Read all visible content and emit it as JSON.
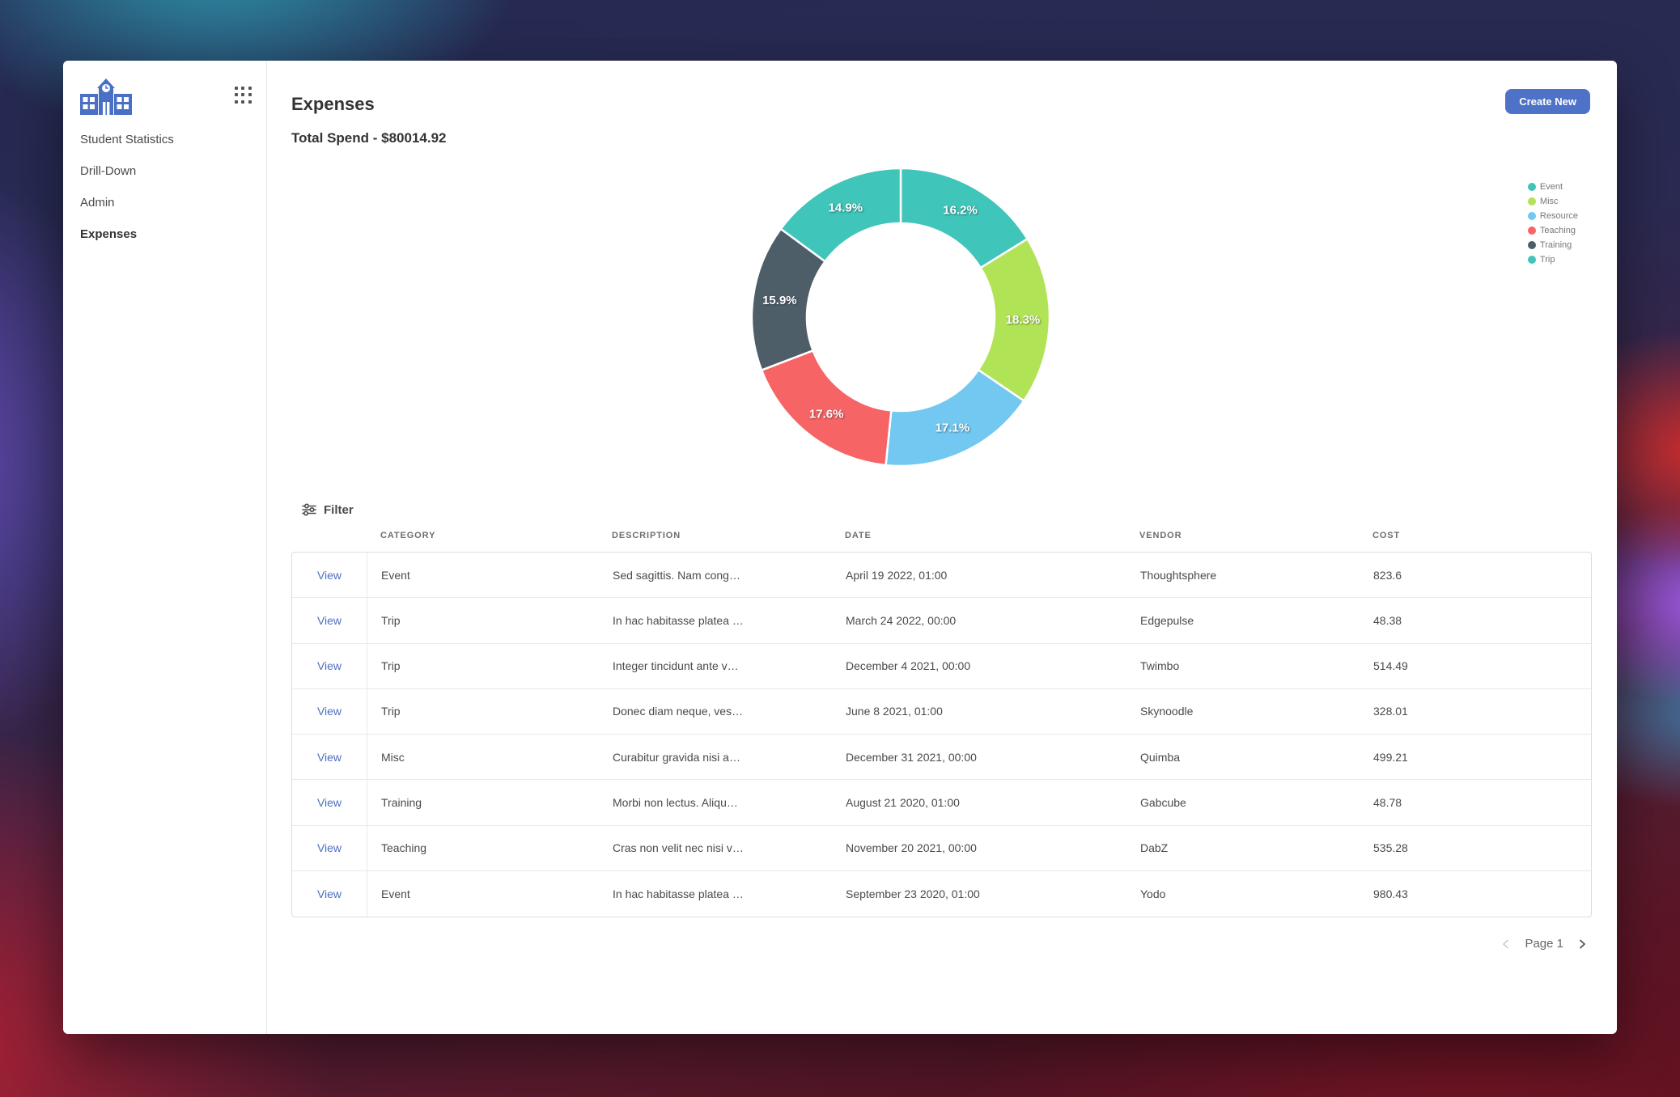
{
  "sidebar": {
    "items": [
      {
        "label": "Student Statistics",
        "active": false
      },
      {
        "label": "Drill-Down",
        "active": false
      },
      {
        "label": "Admin",
        "active": false
      },
      {
        "label": "Expenses",
        "active": true
      }
    ]
  },
  "header": {
    "title": "Expenses",
    "total_spend": "Total Spend - $80014.92",
    "create_button": "Create New"
  },
  "chart_data": {
    "type": "pie",
    "donut": true,
    "labels": [
      "Event",
      "Misc",
      "Resource",
      "Teaching",
      "Training",
      "Trip"
    ],
    "values": [
      16.2,
      18.3,
      17.1,
      17.6,
      15.9,
      14.9
    ],
    "data_labels": [
      "16.2%",
      "18.3%",
      "17.1%",
      "17.6%",
      "15.9%",
      "14.9%"
    ],
    "colors": [
      "#3fc5b9",
      "#b1e356",
      "#72c8f0",
      "#f66465",
      "#4d5e69",
      "#3fc5b9"
    ],
    "legend_position": "right",
    "start_angle_deg": -90,
    "direction": "clockwise",
    "total_value": 80014.92
  },
  "filter": {
    "label": "Filter"
  },
  "table": {
    "action_label": "View",
    "columns": [
      "CATEGORY",
      "DESCRIPTION",
      "DATE",
      "VENDOR",
      "COST"
    ],
    "rows": [
      {
        "category": "Event",
        "description": "Sed sagittis. Nam cong…",
        "date": "April 19 2022, 01:00",
        "vendor": "Thoughtsphere",
        "cost": "823.6"
      },
      {
        "category": "Trip",
        "description": "In hac habitasse platea …",
        "date": "March 24 2022, 00:00",
        "vendor": "Edgepulse",
        "cost": "48.38"
      },
      {
        "category": "Trip",
        "description": "Integer tincidunt ante v…",
        "date": "December 4 2021, 00:00",
        "vendor": "Twimbo",
        "cost": "514.49"
      },
      {
        "category": "Trip",
        "description": "Donec diam neque, ves…",
        "date": "June 8 2021, 01:00",
        "vendor": "Skynoodle",
        "cost": "328.01"
      },
      {
        "category": "Misc",
        "description": "Curabitur gravida nisi a…",
        "date": "December 31 2021, 00:00",
        "vendor": "Quimba",
        "cost": "499.21"
      },
      {
        "category": "Training",
        "description": "Morbi non lectus. Aliqu…",
        "date": "August 21 2020, 01:00",
        "vendor": "Gabcube",
        "cost": "48.78"
      },
      {
        "category": "Teaching",
        "description": "Cras non velit nec nisi v…",
        "date": "November 20 2021, 00:00",
        "vendor": "DabZ",
        "cost": "535.28"
      },
      {
        "category": "Event",
        "description": "In hac habitasse platea …",
        "date": "September 23 2020, 01:00",
        "vendor": "Yodo",
        "cost": "980.43"
      }
    ]
  },
  "pagination": {
    "label": "Page 1"
  },
  "icons": {
    "logo": "school-building-icon",
    "menu": "grid-dots-icon",
    "filter": "sliders-icon",
    "prev": "chevron-left-icon",
    "next": "chevron-right-icon"
  },
  "theme": {
    "accent": "#4d72c7",
    "link": "#4a6fc0",
    "logo_blue": "#4a70c5"
  }
}
